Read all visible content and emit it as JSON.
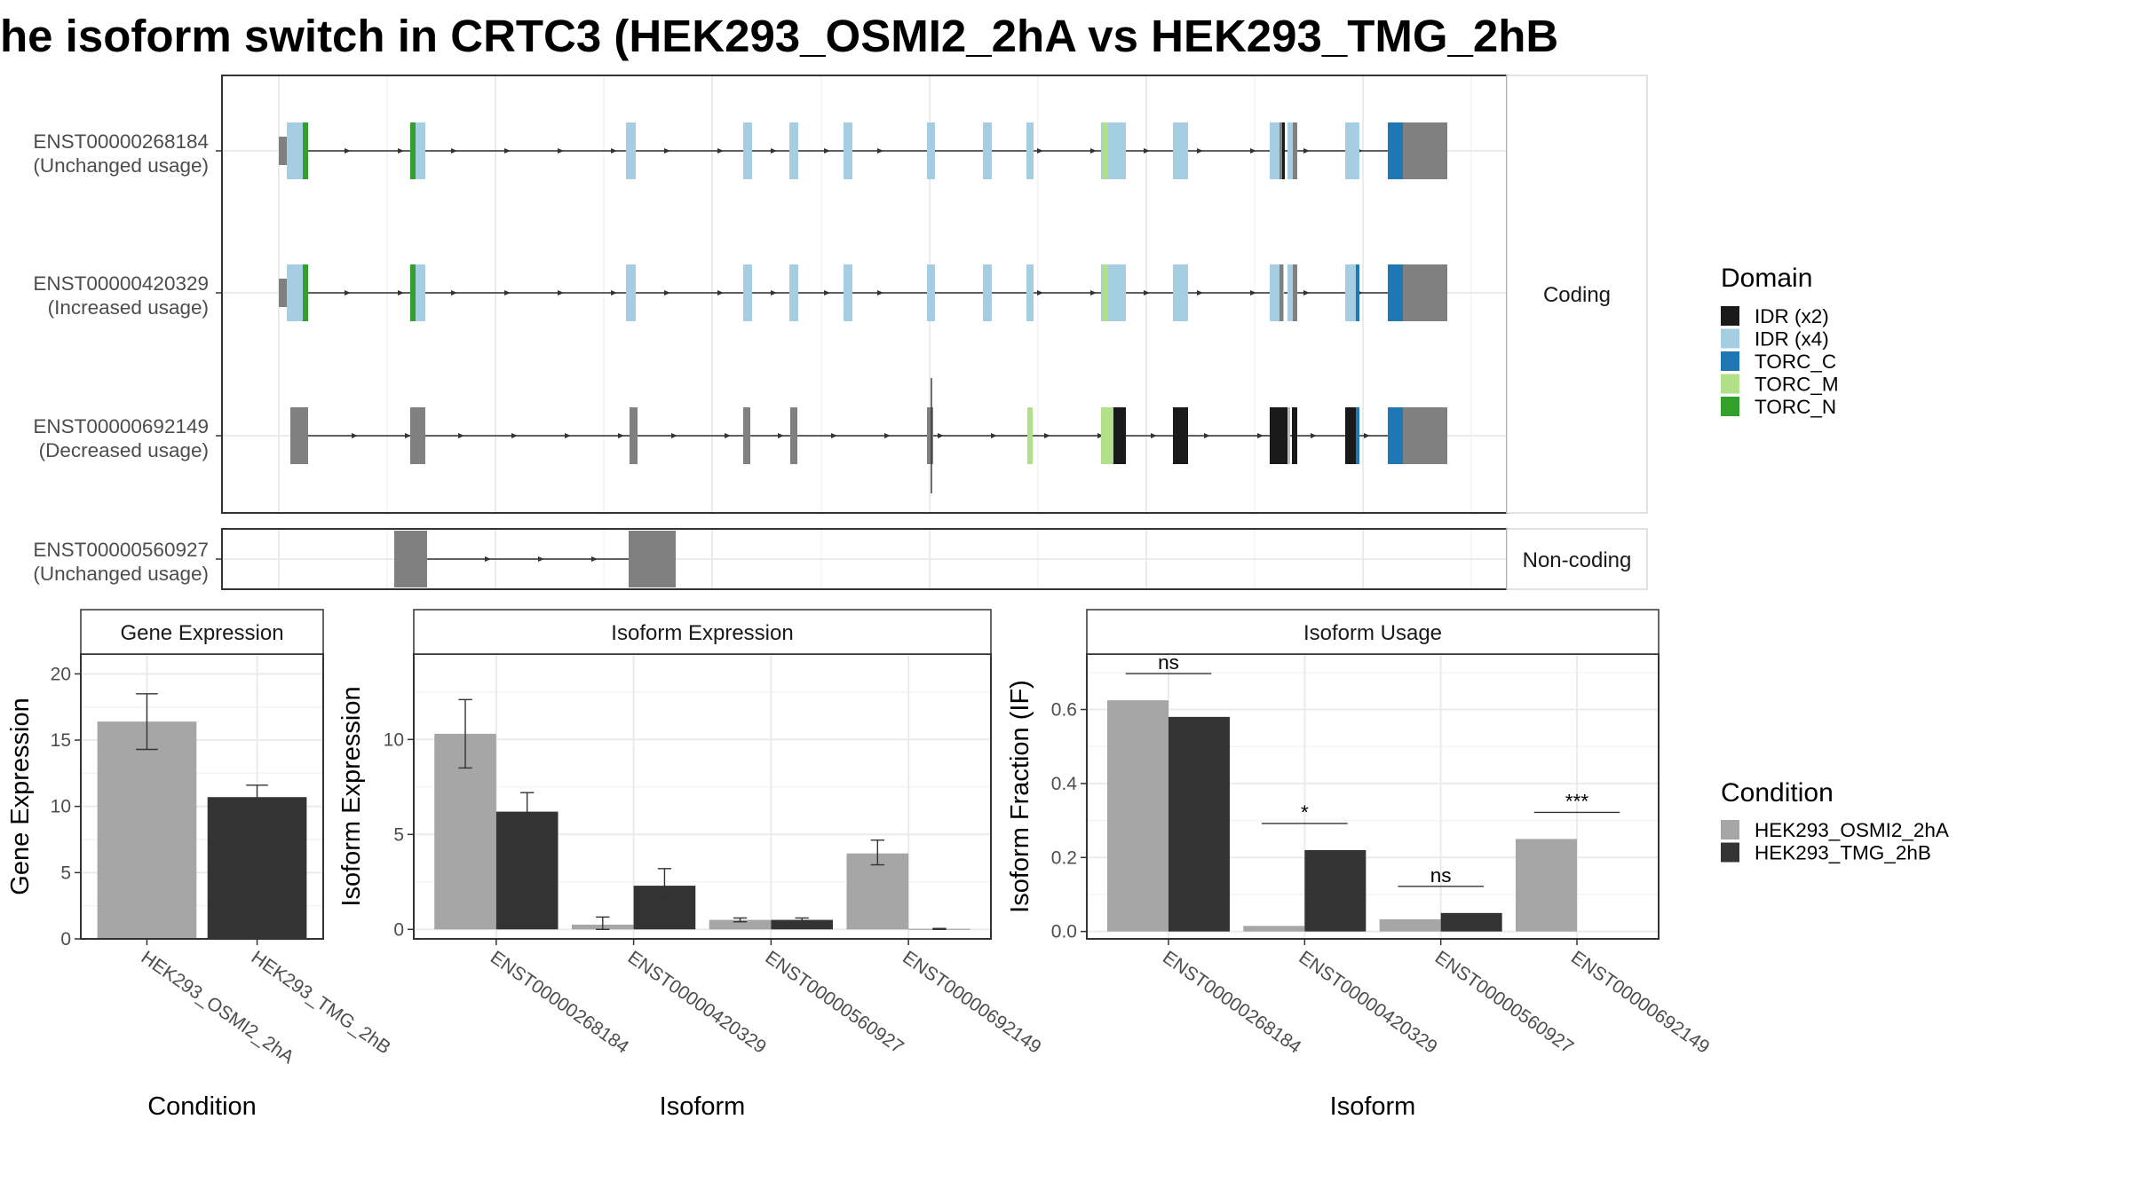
{
  "title": "he isoform switch in CRTC3 (HEK293_OSMI2_2hA vs HEK293_TMG_2hB",
  "colors": {
    "IDR (x2)": "#1a1a1a",
    "IDR (x4)": "#a6cee3",
    "TORC_C": "#1f78b4",
    "TORC_M": "#b2df8a",
    "TORC_N": "#33a02c",
    "exon": "#808080",
    "HEK293_OSMI2_2hA": "#a6a6a6",
    "HEK293_TMG_2hB": "#333333"
  },
  "structure": {
    "strips": {
      "coding": "Coding",
      "noncoding": "Non-coding"
    },
    "isoforms": [
      {
        "id": "ENST00000268184",
        "usage": "(Unchanged usage)",
        "group": "coding"
      },
      {
        "id": "ENST00000420329",
        "usage": "(Increased usage)",
        "group": "coding"
      },
      {
        "id": "ENST00000692149",
        "usage": "(Decreased usage)",
        "group": "coding"
      },
      {
        "id": "ENST00000560927",
        "usage": "(Unchanged usage)",
        "group": "noncoding"
      }
    ]
  },
  "legends": {
    "domain": {
      "title": "Domain",
      "items": [
        "IDR (x2)",
        "IDR (x4)",
        "TORC_C",
        "TORC_M",
        "TORC_N"
      ]
    },
    "condition": {
      "title": "Condition",
      "items": [
        "HEK293_OSMI2_2hA",
        "HEK293_TMG_2hB"
      ]
    }
  },
  "chart_data": [
    {
      "type": "bar",
      "panel": "Gene Expression",
      "xlabel": "Condition",
      "ylabel": "Gene Expression",
      "ylim": [
        0,
        21.5
      ],
      "yticks": [
        0,
        5,
        10,
        15,
        20
      ],
      "categories": [
        "HEK293_OSMI2_2hA",
        "HEK293_TMG_2hB"
      ],
      "values": [
        16.4,
        10.7
      ],
      "errors": [
        [
          14.3,
          18.5
        ],
        [
          9.8,
          11.6
        ]
      ]
    },
    {
      "type": "bar",
      "panel": "Isoform Expression",
      "xlabel": "Isoform",
      "ylabel": "Isoform Expression",
      "ylim": [
        -0.5,
        14.5
      ],
      "yticks": [
        0,
        5,
        10
      ],
      "categories": [
        "ENST00000268184",
        "ENST00000420329",
        "ENST00000560927",
        "ENST00000692149"
      ],
      "series": [
        {
          "name": "HEK293_OSMI2_2hA",
          "values": [
            10.3,
            0.25,
            0.5,
            4.0
          ],
          "errors": [
            [
              8.5,
              12.1
            ],
            [
              0.0,
              0.65
            ],
            [
              0.4,
              0.6
            ],
            [
              3.4,
              4.7
            ]
          ]
        },
        {
          "name": "HEK293_TMG_2hB",
          "values": [
            6.2,
            2.3,
            0.5,
            0.02
          ],
          "errors": [
            [
              5.3,
              7.2
            ],
            [
              1.6,
              3.2
            ],
            [
              0.45,
              0.6
            ],
            [
              0.0,
              0.05
            ]
          ]
        }
      ]
    },
    {
      "type": "bar",
      "panel": "Isoform Usage",
      "xlabel": "Isoform",
      "ylabel": "Isoform Fraction (IF)",
      "ylim": [
        -0.02,
        0.75
      ],
      "yticks": [
        0.0,
        0.2,
        0.4,
        0.6
      ],
      "categories": [
        "ENST00000268184",
        "ENST00000420329",
        "ENST00000560927",
        "ENST00000692149"
      ],
      "series": [
        {
          "name": "HEK293_OSMI2_2hA",
          "values": [
            0.625,
            0.015,
            0.033,
            0.25
          ]
        },
        {
          "name": "HEK293_TMG_2hB",
          "values": [
            0.58,
            0.22,
            0.05,
            0.0
          ]
        }
      ],
      "significance": [
        "ns",
        "*",
        "ns",
        "***"
      ]
    }
  ]
}
